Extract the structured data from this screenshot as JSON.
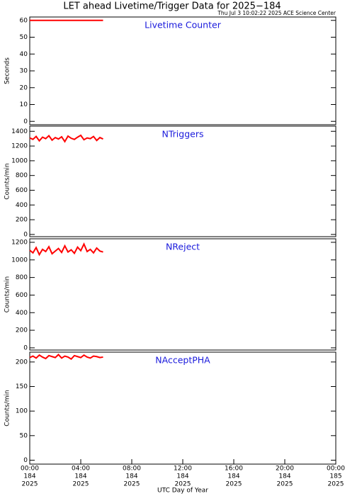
{
  "title": "LET ahead Livetime/Trigger Data for 2025−184",
  "timestamp": "Thu Jul  3 10:02:22 2025 ACE Science Center",
  "chart_data": [
    {
      "type": "line",
      "title": "Livetime Counter",
      "ylabel": "Seconds",
      "xlim": [
        0,
        24
      ],
      "ylim": [
        -2,
        62
      ],
      "yticks": [
        0,
        10,
        20,
        30,
        40,
        50,
        60
      ],
      "color": "#ff0000",
      "x": [
        0,
        0.25,
        0.5,
        0.75,
        1,
        1.25,
        1.5,
        1.75,
        2,
        2.25,
        2.5,
        2.75,
        3,
        3.25,
        3.5,
        3.75,
        4,
        4.25,
        4.5,
        4.75,
        5,
        5.25,
        5.5,
        5.75
      ],
      "values": [
        60,
        60,
        60,
        60,
        60,
        60,
        60,
        60,
        60,
        60,
        60,
        60,
        60,
        60,
        60,
        60,
        60,
        60,
        60,
        60,
        60,
        60,
        60,
        60
      ]
    },
    {
      "type": "line",
      "title": "NTriggers",
      "ylabel": "Counts/min",
      "xlim": [
        0,
        24
      ],
      "ylim": [
        -30,
        1470
      ],
      "yticks": [
        0,
        200,
        400,
        600,
        800,
        1000,
        1200,
        1400
      ],
      "color": "#ff0000",
      "x": [
        0,
        0.25,
        0.5,
        0.75,
        1,
        1.25,
        1.5,
        1.75,
        2,
        2.25,
        2.5,
        2.75,
        3,
        3.25,
        3.5,
        3.75,
        4,
        4.25,
        4.5,
        4.75,
        5,
        5.25,
        5.5,
        5.75
      ],
      "values": [
        1310,
        1290,
        1330,
        1270,
        1320,
        1300,
        1340,
        1280,
        1315,
        1295,
        1325,
        1260,
        1335,
        1305,
        1290,
        1320,
        1345,
        1285,
        1310,
        1300,
        1330,
        1275,
        1315,
        1295
      ]
    },
    {
      "type": "line",
      "title": "NReject",
      "ylabel": "Counts/min",
      "xlim": [
        0,
        24
      ],
      "ylim": [
        -25,
        1240
      ],
      "yticks": [
        0,
        200,
        400,
        600,
        800,
        1000,
        1200
      ],
      "color": "#ff0000",
      "x": [
        0,
        0.25,
        0.5,
        0.75,
        1,
        1.25,
        1.5,
        1.75,
        2,
        2.25,
        2.5,
        2.75,
        3,
        3.25,
        3.5,
        3.75,
        4,
        4.25,
        4.5,
        4.75,
        5,
        5.25,
        5.5,
        5.75
      ],
      "values": [
        1110,
        1080,
        1140,
        1060,
        1120,
        1095,
        1150,
        1070,
        1100,
        1130,
        1085,
        1160,
        1090,
        1115,
        1075,
        1145,
        1105,
        1180,
        1095,
        1120,
        1080,
        1135,
        1100,
        1090
      ]
    },
    {
      "type": "line",
      "title": "NAcceptPHA",
      "ylabel": "Counts/min",
      "xlabel": "UTC Day of Year",
      "xlim": [
        0,
        24
      ],
      "ylim": [
        -8,
        220
      ],
      "yticks": [
        0,
        50,
        100,
        150,
        200
      ],
      "color": "#ff0000",
      "xticks": [
        {
          "value": 0,
          "label": [
            "00:00",
            "184",
            "2025"
          ]
        },
        {
          "value": 4,
          "label": [
            "04:00",
            "184",
            "2025"
          ]
        },
        {
          "value": 8,
          "label": [
            "08:00",
            "184",
            "2025"
          ]
        },
        {
          "value": 12,
          "label": [
            "12:00",
            "184",
            "2025"
          ]
        },
        {
          "value": 16,
          "label": [
            "16:00",
            "184",
            "2025"
          ]
        },
        {
          "value": 20,
          "label": [
            "20:00",
            "184",
            "2025"
          ]
        },
        {
          "value": 24,
          "label": [
            "00:00",
            "185",
            "2025"
          ]
        }
      ],
      "x": [
        0,
        0.25,
        0.5,
        0.75,
        1,
        1.25,
        1.5,
        1.75,
        2,
        2.25,
        2.5,
        2.75,
        3,
        3.25,
        3.5,
        3.75,
        4,
        4.25,
        4.5,
        4.75,
        5,
        5.25,
        5.5,
        5.75
      ],
      "values": [
        209,
        212,
        208,
        214,
        210,
        207,
        213,
        211,
        209,
        215,
        208,
        212,
        210,
        206,
        213,
        211,
        209,
        214,
        210,
        208,
        212,
        211,
        209,
        210
      ]
    }
  ]
}
